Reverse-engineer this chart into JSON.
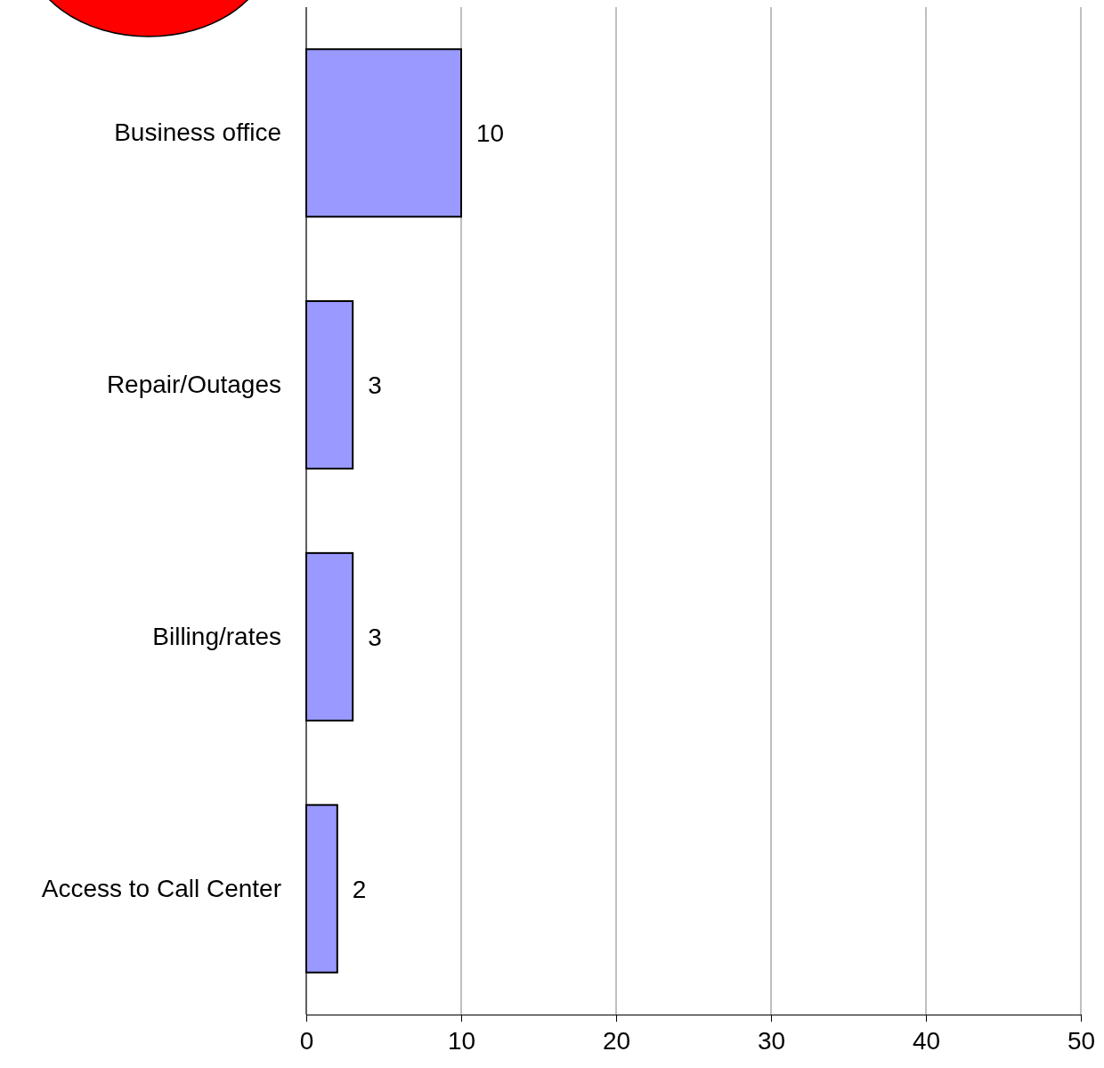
{
  "chart_data": {
    "type": "bar",
    "orientation": "horizontal",
    "categories": [
      "Business office",
      "Repair/Outages",
      "Billing/rates",
      "Access to Call Center"
    ],
    "values": [
      10,
      3,
      3,
      2
    ],
    "color": "#9999ff",
    "xlim": [
      0,
      50
    ],
    "xticks": [
      0,
      10,
      20,
      30,
      40,
      50
    ],
    "grid": "x",
    "data_labels": true
  }
}
